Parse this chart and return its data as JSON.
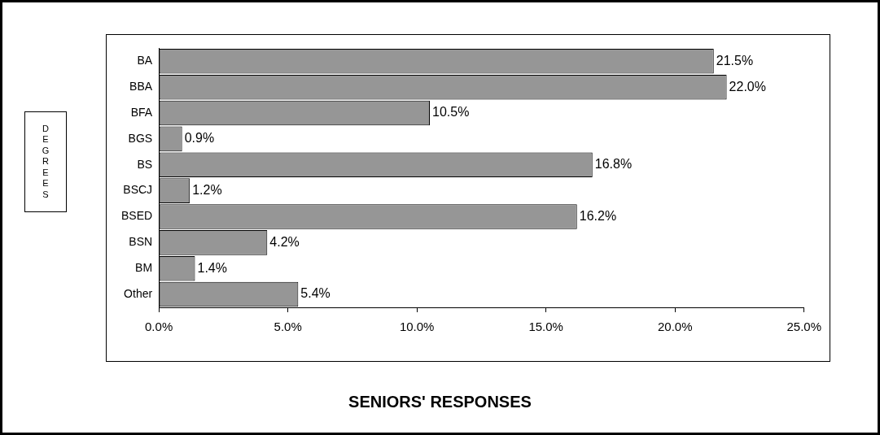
{
  "chart_data": {
    "type": "bar",
    "orientation": "horizontal",
    "title": "SENIORS' RESPONSES",
    "annotations": [
      "DEGREES"
    ],
    "categories": [
      "BA",
      "BBA",
      "BFA",
      "BGS",
      "BS",
      "BSCJ",
      "BSED",
      "BSN",
      "BM",
      "Other"
    ],
    "values": [
      21.5,
      22.0,
      10.5,
      0.9,
      16.8,
      1.2,
      16.2,
      4.2,
      1.4,
      5.4
    ],
    "value_labels": [
      "21.5%",
      "22.0%",
      "10.5%",
      "0.9%",
      "16.8%",
      "1.2%",
      "16.2%",
      "4.2%",
      "1.4%",
      "5.4%"
    ],
    "color": "#969696",
    "xlim": [
      0,
      25
    ],
    "xticks": [
      {
        "value": 0,
        "label": "0.0%"
      },
      {
        "value": 5,
        "label": "5.0%"
      },
      {
        "value": 10,
        "label": "10.0%"
      },
      {
        "value": 15,
        "label": "15.0%"
      },
      {
        "value": 20,
        "label": "20.0%"
      },
      {
        "value": 25,
        "label": "25.0%"
      }
    ],
    "grid": false,
    "legend": false
  }
}
